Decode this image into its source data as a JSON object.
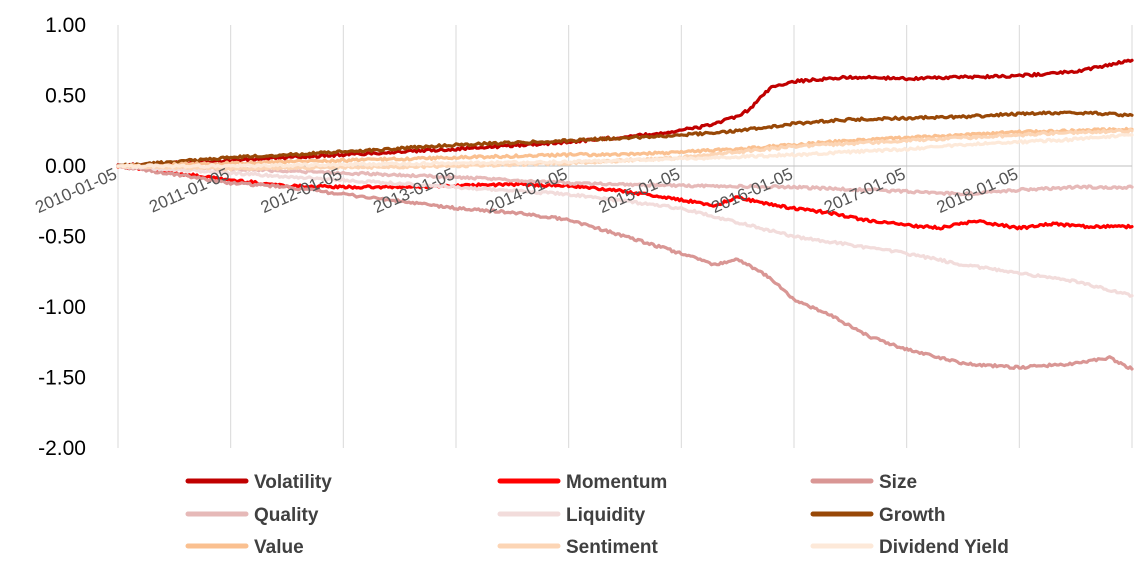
{
  "chart_data": {
    "type": "line",
    "title": "",
    "xlabel": "",
    "ylabel": "",
    "ylim": [
      -2.0,
      1.0
    ],
    "yticks": [
      1.0,
      0.5,
      0.0,
      -0.5,
      -1.0,
      -1.5,
      -2.0
    ],
    "ytick_labels": [
      "1.00",
      "0.50",
      "0.00",
      "-0.50",
      "-1.00",
      "-1.50",
      "-2.00"
    ],
    "xlim": [
      2010.0,
      2019.0
    ],
    "xticks": [
      2010.0,
      2011.0,
      2012.0,
      2013.0,
      2014.0,
      2015.0,
      2016.0,
      2017.0,
      2018.0
    ],
    "xtick_labels": [
      "2010-01-05",
      "2011-01-05",
      "2012-01-05",
      "2013-01-05",
      "2014-01-05",
      "2015-01-05",
      "2016-01-05",
      "2017-01-05",
      "2018-01-05"
    ],
    "grid": "vertical",
    "legend_position": "bottom",
    "series": [
      {
        "name": "Volatility",
        "color": "#C00000",
        "points": [
          [
            2010.0,
            0.0
          ],
          [
            2011.0,
            0.04
          ],
          [
            2012.0,
            0.08
          ],
          [
            2013.0,
            0.12
          ],
          [
            2014.0,
            0.17
          ],
          [
            2014.8,
            0.23
          ],
          [
            2015.2,
            0.28
          ],
          [
            2015.5,
            0.35
          ],
          [
            2015.6,
            0.4
          ],
          [
            2015.8,
            0.56
          ],
          [
            2016.0,
            0.6
          ],
          [
            2016.5,
            0.63
          ],
          [
            2017.0,
            0.62
          ],
          [
            2017.5,
            0.63
          ],
          [
            2018.0,
            0.64
          ],
          [
            2018.5,
            0.67
          ],
          [
            2019.0,
            0.75
          ]
        ]
      },
      {
        "name": "Momentum",
        "color": "#FF0000",
        "points": [
          [
            2010.0,
            0.0
          ],
          [
            2010.5,
            -0.05
          ],
          [
            2011.0,
            -0.1
          ],
          [
            2011.5,
            -0.14
          ],
          [
            2012.0,
            -0.15
          ],
          [
            2012.5,
            -0.15
          ],
          [
            2013.0,
            -0.14
          ],
          [
            2013.5,
            -0.13
          ],
          [
            2014.0,
            -0.14
          ],
          [
            2014.5,
            -0.18
          ],
          [
            2015.0,
            -0.24
          ],
          [
            2015.3,
            -0.28
          ],
          [
            2015.5,
            -0.22
          ],
          [
            2015.7,
            -0.26
          ],
          [
            2016.0,
            -0.3
          ],
          [
            2016.3,
            -0.33
          ],
          [
            2016.6,
            -0.38
          ],
          [
            2017.0,
            -0.42
          ],
          [
            2017.3,
            -0.44
          ],
          [
            2017.6,
            -0.39
          ],
          [
            2018.0,
            -0.44
          ],
          [
            2018.3,
            -0.41
          ],
          [
            2018.6,
            -0.43
          ],
          [
            2019.0,
            -0.43
          ]
        ]
      },
      {
        "name": "Size",
        "color": "#D99694",
        "points": [
          [
            2010.0,
            0.0
          ],
          [
            2010.5,
            -0.06
          ],
          [
            2011.0,
            -0.12
          ],
          [
            2011.5,
            -0.15
          ],
          [
            2012.0,
            -0.2
          ],
          [
            2012.5,
            -0.25
          ],
          [
            2013.0,
            -0.3
          ],
          [
            2013.5,
            -0.33
          ],
          [
            2014.0,
            -0.38
          ],
          [
            2014.5,
            -0.5
          ],
          [
            2015.0,
            -0.62
          ],
          [
            2015.3,
            -0.7
          ],
          [
            2015.5,
            -0.66
          ],
          [
            2015.8,
            -0.8
          ],
          [
            2016.0,
            -0.95
          ],
          [
            2016.3,
            -1.05
          ],
          [
            2016.7,
            -1.22
          ],
          [
            2017.0,
            -1.3
          ],
          [
            2017.5,
            -1.4
          ],
          [
            2018.0,
            -1.43
          ],
          [
            2018.5,
            -1.4
          ],
          [
            2018.8,
            -1.36
          ],
          [
            2019.0,
            -1.44
          ]
        ]
      },
      {
        "name": "Quality",
        "color": "#E6B9B8",
        "points": [
          [
            2010.0,
            0.0
          ],
          [
            2011.0,
            -0.02
          ],
          [
            2012.0,
            -0.05
          ],
          [
            2013.0,
            -0.08
          ],
          [
            2014.0,
            -0.12
          ],
          [
            2015.0,
            -0.14
          ],
          [
            2016.0,
            -0.15
          ],
          [
            2017.0,
            -0.18
          ],
          [
            2017.5,
            -0.2
          ],
          [
            2018.0,
            -0.17
          ],
          [
            2018.5,
            -0.15
          ],
          [
            2019.0,
            -0.15
          ]
        ]
      },
      {
        "name": "Liquidity",
        "color": "#F2DCDB",
        "points": [
          [
            2010.0,
            0.0
          ],
          [
            2011.0,
            -0.05
          ],
          [
            2012.0,
            -0.1
          ],
          [
            2013.0,
            -0.15
          ],
          [
            2014.0,
            -0.2
          ],
          [
            2015.0,
            -0.3
          ],
          [
            2015.5,
            -0.4
          ],
          [
            2016.0,
            -0.5
          ],
          [
            2016.5,
            -0.56
          ],
          [
            2017.0,
            -0.62
          ],
          [
            2017.5,
            -0.7
          ],
          [
            2018.0,
            -0.76
          ],
          [
            2018.5,
            -0.82
          ],
          [
            2019.0,
            -0.92
          ]
        ]
      },
      {
        "name": "Growth",
        "color": "#984807",
        "points": [
          [
            2010.0,
            0.0
          ],
          [
            2011.0,
            0.06
          ],
          [
            2012.0,
            0.1
          ],
          [
            2013.0,
            0.15
          ],
          [
            2014.0,
            0.18
          ],
          [
            2015.0,
            0.22
          ],
          [
            2015.5,
            0.25
          ],
          [
            2016.0,
            0.3
          ],
          [
            2016.5,
            0.33
          ],
          [
            2017.0,
            0.34
          ],
          [
            2017.5,
            0.35
          ],
          [
            2018.0,
            0.37
          ],
          [
            2018.5,
            0.38
          ],
          [
            2019.0,
            0.36
          ]
        ]
      },
      {
        "name": "Value",
        "color": "#FAC090",
        "points": [
          [
            2010.0,
            0.0
          ],
          [
            2011.0,
            0.02
          ],
          [
            2012.0,
            0.04
          ],
          [
            2013.0,
            0.06
          ],
          [
            2014.0,
            0.08
          ],
          [
            2014.5,
            0.08
          ],
          [
            2015.0,
            0.1
          ],
          [
            2015.5,
            0.12
          ],
          [
            2016.0,
            0.15
          ],
          [
            2016.5,
            0.18
          ],
          [
            2017.0,
            0.2
          ],
          [
            2017.5,
            0.22
          ],
          [
            2018.0,
            0.24
          ],
          [
            2018.5,
            0.25
          ],
          [
            2019.0,
            0.26
          ]
        ]
      },
      {
        "name": "Sentiment",
        "color": "#FCD5B5",
        "points": [
          [
            2010.0,
            0.0
          ],
          [
            2011.0,
            -0.02
          ],
          [
            2012.0,
            -0.01
          ],
          [
            2013.0,
            0.0
          ],
          [
            2014.0,
            0.02
          ],
          [
            2015.0,
            0.06
          ],
          [
            2015.5,
            0.1
          ],
          [
            2016.0,
            0.14
          ],
          [
            2016.5,
            0.16
          ],
          [
            2017.0,
            0.18
          ],
          [
            2017.5,
            0.2
          ],
          [
            2018.0,
            0.22
          ],
          [
            2018.5,
            0.24
          ],
          [
            2019.0,
            0.25
          ]
        ]
      },
      {
        "name": "Dividend Yield",
        "color": "#FDE9D9",
        "points": [
          [
            2010.0,
            0.0
          ],
          [
            2011.0,
            0.0
          ],
          [
            2012.0,
            0.01
          ],
          [
            2013.0,
            0.02
          ],
          [
            2014.0,
            0.03
          ],
          [
            2015.0,
            0.05
          ],
          [
            2016.0,
            0.08
          ],
          [
            2016.5,
            0.1
          ],
          [
            2017.0,
            0.12
          ],
          [
            2017.5,
            0.15
          ],
          [
            2018.0,
            0.17
          ],
          [
            2018.5,
            0.19
          ],
          [
            2019.0,
            0.22
          ]
        ]
      }
    ]
  }
}
